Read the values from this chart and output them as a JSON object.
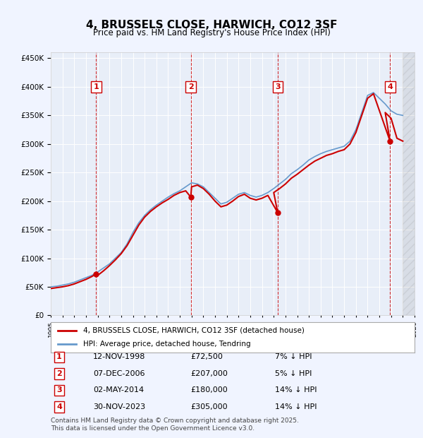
{
  "title": "4, BRUSSELS CLOSE, HARWICH, CO12 3SF",
  "subtitle": "Price paid vs. HM Land Registry's House Price Index (HPI)",
  "ylabel": "",
  "ylim": [
    0,
    460000
  ],
  "yticks": [
    0,
    50000,
    100000,
    150000,
    200000,
    250000,
    300000,
    350000,
    400000,
    450000
  ],
  "background_color": "#f0f4ff",
  "plot_bg": "#e8eef8",
  "legend_label_red": "4, BRUSSELS CLOSE, HARWICH, CO12 3SF (detached house)",
  "legend_label_blue": "HPI: Average price, detached house, Tendring",
  "footer": "Contains HM Land Registry data © Crown copyright and database right 2025.\nThis data is licensed under the Open Government Licence v3.0.",
  "sale_dates": [
    "1998-11-12",
    "2006-12-07",
    "2014-05-02",
    "2023-11-30"
  ],
  "sale_prices": [
    72500,
    207000,
    180000,
    305000
  ],
  "sale_labels": [
    "1",
    "2",
    "3",
    "4"
  ],
  "sale_notes": [
    "12-NOV-1998",
    "07-DEC-2006",
    "02-MAY-2014",
    "30-NOV-2023"
  ],
  "sale_amounts": [
    "£72,500",
    "£207,000",
    "£180,000",
    "£305,000"
  ],
  "sale_hpi": [
    "7% ↓ HPI",
    "5% ↓ HPI",
    "14% ↓ HPI",
    "14% ↓ HPI"
  ],
  "red_color": "#cc0000",
  "blue_color": "#6699cc",
  "dashed_color": "#cc0000",
  "hpi_years": [
    1995,
    1996,
    1997,
    1998,
    1999,
    2000,
    2001,
    2002,
    2003,
    2004,
    2005,
    2006,
    2007,
    2008,
    2009,
    2010,
    2011,
    2012,
    2013,
    2014,
    2015,
    2016,
    2017,
    2018,
    2019,
    2020,
    2021,
    2022,
    2023,
    2024,
    2025
  ],
  "hpi_values": [
    50000,
    52000,
    55000,
    60000,
    68000,
    80000,
    95000,
    120000,
    145000,
    170000,
    195000,
    215000,
    230000,
    220000,
    200000,
    215000,
    220000,
    210000,
    215000,
    225000,
    245000,
    260000,
    280000,
    290000,
    295000,
    305000,
    340000,
    390000,
    370000,
    350000,
    345000
  ],
  "red_years": [
    1995,
    1996,
    1997,
    1998,
    1999,
    2000,
    2001,
    2002,
    2003,
    2004,
    2005,
    2006,
    2007,
    2008,
    2009,
    2010,
    2011,
    2012,
    2013,
    2014,
    2015,
    2016,
    2017,
    2018,
    2019,
    2020,
    2021,
    2022,
    2023,
    2024,
    2025
  ],
  "red_values": [
    48000,
    50000,
    53000,
    72500,
    65000,
    78000,
    92000,
    115000,
    140000,
    165000,
    190000,
    207000,
    222000,
    210000,
    185000,
    195000,
    210000,
    195000,
    195000,
    180000,
    195000,
    220000,
    250000,
    265000,
    270000,
    285000,
    320000,
    380000,
    305000,
    295000,
    305000
  ]
}
